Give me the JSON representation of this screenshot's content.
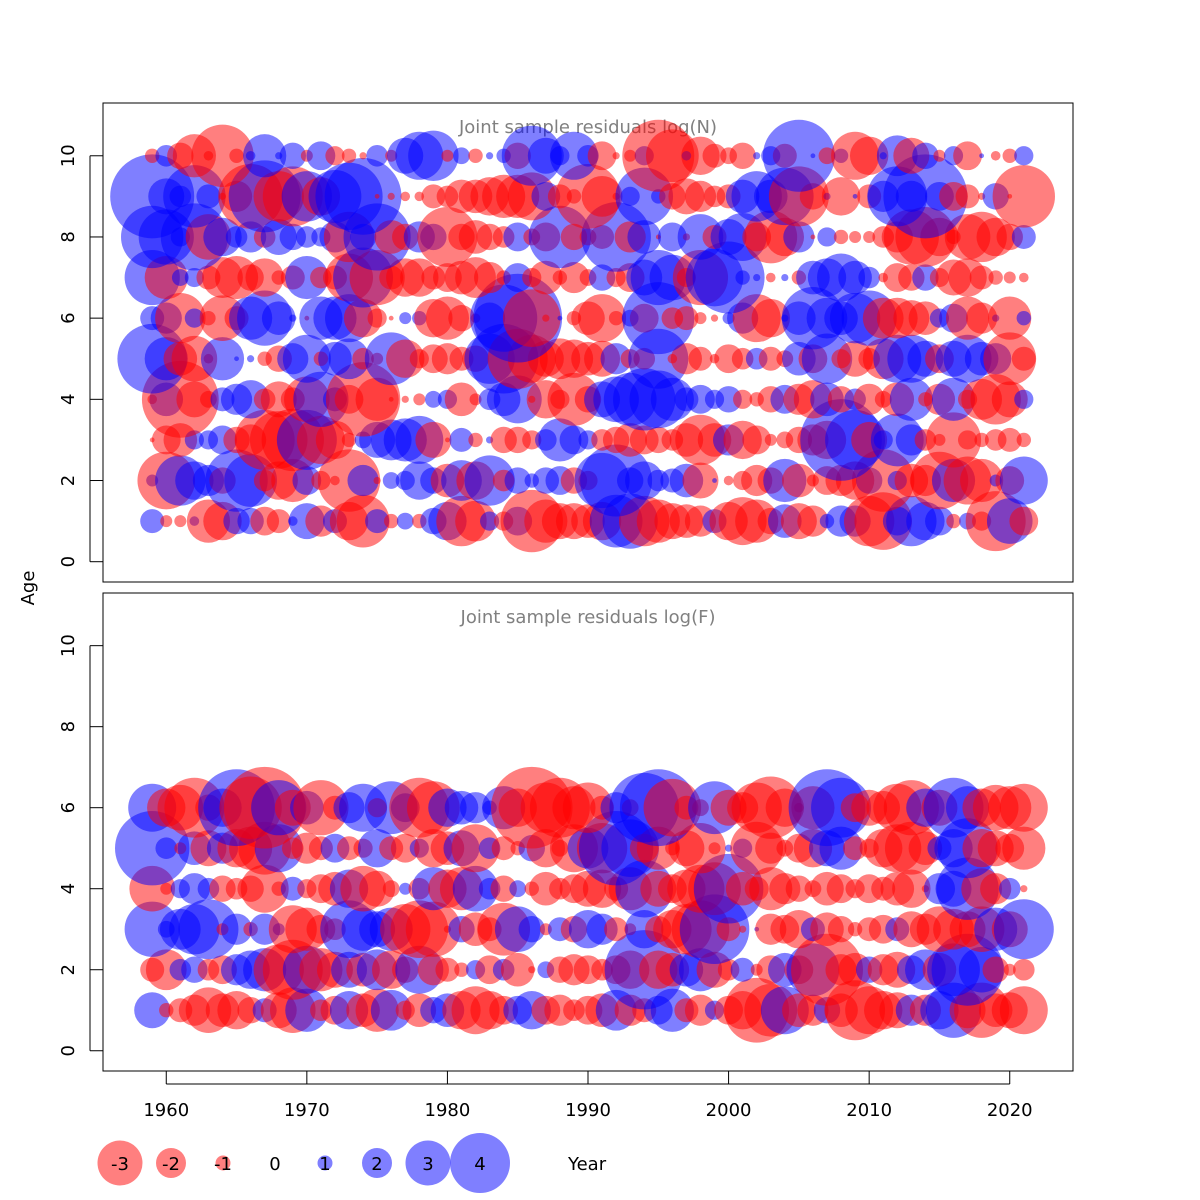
{
  "chart_data": {
    "type": "scatter",
    "subtype": "bubble",
    "xlabel": "Year",
    "ylabel": "Age",
    "xlim": [
      1955.5,
      2024.5
    ],
    "x_ticks": [
      "1960",
      "1970",
      "1980",
      "1990",
      "2000",
      "2010",
      "2020"
    ],
    "y_ticks": [
      "0",
      "2",
      "4",
      "6",
      "8",
      "10"
    ],
    "years": [
      1959,
      2021
    ],
    "colors": {
      "negative": "#FF0000",
      "positive": "#0000FF",
      "alpha": 0.5
    },
    "legend": {
      "placement": "bottom-left",
      "entries": [
        {
          "label": "-3",
          "value": -3
        },
        {
          "label": "-2",
          "value": -2
        },
        {
          "label": "-1",
          "value": -1
        },
        {
          "label": "0",
          "value": 0
        },
        {
          "label": "1",
          "value": 1
        },
        {
          "label": "2",
          "value": 2
        },
        {
          "label": "3",
          "value": 3
        },
        {
          "label": "4",
          "value": 4
        }
      ]
    },
    "panels": [
      {
        "title": "Joint sample residuals log(N)",
        "ylim": [
          -0.5,
          11.3
        ],
        "ages": [
          1,
          2,
          3,
          4,
          5,
          6,
          7,
          8,
          9,
          10
        ],
        "residuals": {
          "10": [
            -0.6,
            0.9,
            -1.1,
            -1.8,
            -0.4,
            -2.6,
            -0.6,
            0.4,
            1.8,
            0.3,
            1.1,
            -0.5,
            1.2,
            -0.8,
            -0.6,
            -0.3,
            0.9,
            -0.5,
            1.5,
            2.0,
            2.1,
            -0.5,
            0.7,
            -0.6,
            0.3,
            0.6,
            -1.1,
            2.5,
            1.5,
            0.8,
            2.0,
            0.9,
            -1.2,
            -0.3,
            -0.5,
            0.8,
            -3.0,
            -2.2,
            0.4,
            -1.6,
            -1.0,
            -0.7,
            -1.1,
            0.3,
            0.8,
            -1.0,
            3.0,
            0.2,
            -0.7,
            0.6,
            -2.0,
            -1.6,
            0.3,
            1.7,
            -1.5,
            1.1,
            -0.5,
            0.8,
            -1.2,
            0.2,
            -0.4,
            -0.6,
            0.8
          ],
          "9": [
            3.5,
            1.5,
            0.9,
            2.6,
            1.0,
            -0.3,
            -1.3,
            -2.7,
            3.0,
            -2.1,
            -2.5,
            2.1,
            -1.6,
            2.2,
            2.8,
            3.2,
            -0.2,
            -0.3,
            -0.4,
            -0.4,
            -1.0,
            -0.9,
            -1.4,
            -1.4,
            -1.6,
            -1.8,
            -1.8,
            -2.0,
            1.2,
            -1.0,
            -0.6,
            -2.7,
            -1.7,
            -0.3,
            0.8,
            2.4,
            0.6,
            -1.1,
            -1.5,
            -1.3,
            -0.9,
            -1.0,
            1.4,
            2.1,
            1.4,
            2.4,
            -2.5,
            -1.1,
            0.3,
            -1.6,
            0.2,
            -1.0,
            1.3,
            2.5,
            1.3,
            3.5,
            1.2,
            -1.2,
            -1.0,
            -0.3,
            1.1,
            -0.2,
            -2.6
          ],
          "8": [
            2.6,
            2.3,
            0.8,
            2.8,
            -1.9,
            1.6,
            0.9,
            1.3,
            -0.9,
            1.5,
            1.1,
            0.9,
            0.8,
            1.3,
            -2.1,
            1.1,
            2.8,
            -1.4,
            -1.1,
            1.3,
            1.1,
            -2.5,
            -1.1,
            -1.4,
            -1.1,
            -0.9,
            1.2,
            -0.7,
            -1.2,
            2.6,
            -1.1,
            -0.7,
            -1.0,
            2.9,
            -1.3,
            1.4,
            -0.2,
            1.2,
            -0.3,
            1.9,
            -1.0,
            1.5,
            2.0,
            -1.2,
            -2.2,
            -1.6,
            1.3,
            -0.2,
            0.8,
            -0.6,
            -0.5,
            -0.5,
            -0.9,
            -1.3,
            -2.3,
            -2.5,
            -1.6,
            -0.6,
            -1.9,
            -2.1,
            -1.6,
            -1.1,
            1.0
          ],
          "7": [
            2.3,
            -1.8,
            0.7,
            0.8,
            -1.0,
            -1.7,
            -1.8,
            -1.1,
            -1.6,
            -0.6,
            -1.0,
            1.8,
            -0.9,
            -1.0,
            -2.0,
            2.5,
            -2.3,
            -1.0,
            -1.6,
            -1.6,
            -1.0,
            -1.2,
            -1.4,
            -1.7,
            -1.3,
            -0.6,
            1.2,
            -0.8,
            -1.4,
            -0.6,
            -1.3,
            -0.7,
            1.1,
            -0.8,
            -1.2,
            1.5,
            2.3,
            1.9,
            -0.8,
            -2.3,
            2.4,
            3.0,
            0.6,
            0.3,
            -0.4,
            0.3,
            -0.6,
            1.4,
            1.6,
            2.0,
            1.4,
            0.9,
            -0.4,
            -1.2,
            -1.1,
            1.1,
            -0.8,
            -1.5,
            -1.6,
            -1.0,
            -0.6,
            -0.5,
            -0.4
          ],
          "6": [
            1.0,
            1.3,
            -2.1,
            0.8,
            -0.6,
            -1.9,
            -1.0,
            1.8,
            2.3,
            1.4,
            0.3,
            -0.2,
            1.8,
            1.8,
            2.0,
            -1.6,
            -0.8,
            -0.2,
            0.5,
            0.6,
            -1.6,
            -1.8,
            -1.1,
            -0.4,
            1.3,
            2.8,
            3.7,
            -2.4,
            -0.3,
            0.2,
            -0.6,
            -1.4,
            -2.0,
            -0.6,
            0.7,
            -1.2,
            3.0,
            -0.9,
            -1.0,
            -0.5,
            -0.3,
            0.5,
            1.3,
            -2.0,
            -1.6,
            0.3,
            1.4,
            2.6,
            1.7,
            1.4,
            2.1,
            2.3,
            -1.7,
            -1.7,
            -1.5,
            -1.4,
            0.8,
            1.2,
            -1.8,
            -1.3,
            0.3,
            -1.8,
            0.6
          ],
          "5": [
            2.9,
            1.8,
            -1.4,
            -1.9,
            -0.4,
            1.8,
            0.2,
            0.3,
            -0.6,
            -1.1,
            1.3,
            2.0,
            -0.6,
            1.4,
            1.7,
            -0.9,
            -0.5,
            2.2,
            -1.6,
            -0.8,
            -1.2,
            -1.3,
            -1.0,
            -1.1,
            2.1,
            2.9,
            -2.5,
            -2.0,
            -1.5,
            -1.7,
            -1.6,
            -1.4,
            -1.5,
            1.3,
            -0.8,
            -0.9,
            2.5,
            -0.4,
            -1.3,
            -1.0,
            -0.4,
            -1.2,
            -0.9,
            0.9,
            -1.0,
            -0.7,
            1.4,
            -1.2,
            2.1,
            -0.8,
            -1.5,
            -0.9,
            -1.7,
            2.0,
            2.0,
            1.5,
            -1.2,
            1.5,
            2.0,
            1.4,
            1.3,
            -2.2,
            -1.0
          ],
          "4": [
            -0.4,
            1.4,
            -3.2,
            -1.5,
            -0.7,
            1.0,
            1.3,
            1.6,
            -0.9,
            -1.5,
            -1.0,
            -1.9,
            2.3,
            1.0,
            -1.2,
            -3.1,
            -1.8,
            -0.2,
            -0.3,
            -0.5,
            0.7,
            0.8,
            -1.4,
            -0.5,
            0.9,
            1.4,
            2.0,
            -0.3,
            -1.6,
            -0.8,
            -2.2,
            -1.1,
            1.5,
            1.9,
            2.2,
            2.6,
            2.4,
            1.8,
            1.0,
            1.2,
            0.8,
            1.1,
            -0.8,
            -0.6,
            -1.1,
            1.2,
            -1.3,
            -1.6,
            1.4,
            -1.1,
            0.9,
            -1.3,
            -0.7,
            -1.4,
            1.8,
            -0.6,
            -1.3,
            1.8,
            -0.8,
            -1.7,
            -2.1,
            -1.5,
            0.8
          ],
          "3": [
            -0.2,
            -1.2,
            -1.4,
            0.8,
            0.8,
            1.2,
            -1.1,
            -1.3,
            -2.5,
            -2.4,
            -2.6,
            2.5,
            -2.0,
            -1.6,
            -0.6,
            0.7,
            1.5,
            1.7,
            1.8,
            2.0,
            -1.5,
            -0.2,
            1.0,
            -0.6,
            0.3,
            -1.1,
            -1.1,
            -0.8,
            0.9,
            1.8,
            1.2,
            0.8,
            -0.9,
            -1.1,
            -1.4,
            -1.2,
            -1.1,
            -0.9,
            -1.4,
            -2.1,
            -1.4,
            1.3,
            -1.6,
            -1.2,
            -0.5,
            -0.7,
            -1.1,
            -1.3,
            -1.6,
            3.4,
            2.5,
            -1.5,
            0.8,
            2.2,
            1.3,
            -0.9,
            -0.5,
            -2.3,
            -0.8,
            -0.6,
            -0.9,
            -1.0,
            -0.6
          ],
          "2": [
            0.5,
            -2.4,
            2.1,
            1.6,
            1.3,
            -1.1,
            2.6,
            2.2,
            -0.9,
            -1.6,
            -1.8,
            1.2,
            -0.8,
            -0.4,
            -2.6,
            1.3,
            -0.3,
            0.7,
            0.8,
            1.6,
            1.1,
            -1.4,
            1.7,
            -1.6,
            2.1,
            -0.9,
            1.1,
            0.6,
            1.1,
            1.2,
            -1.1,
            -0.8,
            2.3,
            3.0,
            1.1,
            1.6,
            0.9,
            1.0,
            1.4,
            -1.5,
            0.2,
            -0.4,
            -0.8,
            -1.3,
            -1.1,
            1.8,
            -1.4,
            -0.5,
            -1.2,
            -1.3,
            -1.6,
            1.1,
            -2.6,
            0.8,
            -1.4,
            -1.3,
            -2.4,
            1.8,
            -2.0,
            -1.8,
            0.5,
            -1.2,
            2.0
          ],
          "1": [
            1.0,
            -0.5,
            -0.5,
            0.4,
            -1.8,
            -1.6,
            1.1,
            1.1,
            -1.2,
            -1.0,
            0.4,
            1.5,
            -1.3,
            1.0,
            -1.6,
            -2.2,
            1.0,
            -0.6,
            0.7,
            -0.6,
            1.1,
            1.6,
            -2.1,
            -1.7,
            0.8,
            -0.8,
            1.2,
            -2.6,
            -1.8,
            -1.5,
            -1.5,
            -1.4,
            -1.6,
            2.2,
            2.3,
            -2.1,
            -1.8,
            -1.5,
            -1.4,
            -1.3,
            1.0,
            -1.6,
            -2.0,
            -1.8,
            -1.1,
            1.4,
            -1.5,
            -1.3,
            0.6,
            1.3,
            1.3,
            -2.1,
            -2.4,
            1.2,
            2.1,
            1.6,
            1.2,
            -0.6,
            0.7,
            -0.8,
            -2.5,
            1.9,
            -1.2
          ]
        }
      },
      {
        "title": "Joint sample residuals log(F)",
        "ylim": [
          -0.5,
          11.3
        ],
        "ages": [
          1,
          2,
          3,
          4,
          5,
          6
        ],
        "residuals": {
          "6": [
            2.0,
            -1.6,
            -1.9,
            -2.5,
            -1.1,
            1.6,
            3.2,
            -2.6,
            -3.4,
            2.3,
            -1.5,
            1.4,
            -2.3,
            -1.0,
            1.3,
            2.0,
            -0.8,
            2.2,
            1.2,
            -2.5,
            -2.2,
            1.6,
            1.4,
            1.3,
            0.6,
            1.8,
            -1.6,
            -3.4,
            -2.1,
            -2.5,
            -1.8,
            -2.1,
            -1.0,
            1.3,
            -0.7,
            2.9,
            3.2,
            -2.4,
            -1.0,
            -0.7,
            2.2,
            -1.5,
            -1.3,
            -2.1,
            -2.6,
            -1.6,
            -0.4,
            -1.8,
            3.2,
            2.5,
            -1.2,
            -1.5,
            -1.4,
            -2.0,
            -2.3,
            1.6,
            -1.5,
            2.5,
            1.8,
            -1.6,
            -1.9,
            -1.8,
            -2.0
          ],
          "5": [
            3.1,
            0.9,
            -0.5,
            1.4,
            -1.5,
            1.3,
            -1.6,
            -1.8,
            -2.2,
            2.0,
            -0.9,
            -1.3,
            -1.0,
            1.2,
            -1.0,
            -0.8,
            1.6,
            -1.0,
            -1.2,
            0.8,
            -1.6,
            -1.4,
            1.5,
            -2.0,
            0.9,
            -1.0,
            -0.6,
            1.1,
            -1.6,
            -0.7,
            -2.0,
            1.7,
            -2.1,
            3.1,
            2.4,
            -1.2,
            -1.8,
            -0.6,
            -1.5,
            -2.1,
            -0.5,
            0.3,
            0.8,
            -2.2,
            -1.3,
            -0.7,
            -1.2,
            -1.6,
            1.5,
            1.8,
            -1.0,
            -0.8,
            -1.6,
            -2.0,
            -2.2,
            -1.4,
            1.0,
            1.6,
            2.5,
            -1.6,
            -1.5,
            -1.2,
            -1.8
          ],
          "4": [
            -1.9,
            -0.5,
            0.8,
            1.3,
            0.9,
            -1.1,
            -0.9,
            -1.1,
            -2.0,
            -0.6,
            1.0,
            -0.8,
            -1.2,
            -1.4,
            1.6,
            -1.9,
            -1.5,
            -0.7,
            0.5,
            -0.9,
            1.8,
            -1.6,
            -1.8,
            1.9,
            0.9,
            -1.1,
            0.7,
            -0.6,
            -1.4,
            -0.9,
            -1.2,
            -1.5,
            -1.6,
            -1.0,
            -1.8,
            2.4,
            -1.5,
            -1.2,
            -1.6,
            -2.0,
            -2.2,
            2.9,
            -1.4,
            -1.0,
            -1.8,
            -1.3,
            -1.1,
            -0.7,
            -1.4,
            -1.2,
            -0.8,
            -1.2,
            -1.0,
            -1.4,
            -1.6,
            -0.3,
            1.3,
            1.5,
            2.6,
            -1.7,
            -1.3,
            0.9,
            -0.3
          ],
          "3": [
            2.3,
            0.7,
            1.7,
            2.1,
            2.5,
            -0.5,
            1.3,
            -0.6,
            1.3,
            0.5,
            -2.0,
            -1.8,
            -1.2,
            -0.9,
            2.4,
            1.8,
            1.5,
            1.8,
            -2.1,
            -2.4,
            -2.3,
            -0.3,
            1.1,
            -1.4,
            -1.0,
            -2.2,
            1.9,
            1.1,
            -0.5,
            1.0,
            -1.1,
            1.6,
            1.3,
            -1.0,
            -0.5,
            1.6,
            -1.1,
            -1.6,
            -2.1,
            -2.4,
            2.9,
            -1.0,
            -0.3,
            0.2,
            -1.3,
            -1.2,
            -1.6,
            1.0,
            -1.4,
            -1.1,
            -0.6,
            -1.0,
            -1.2,
            1.0,
            -1.5,
            -1.3,
            -1.9,
            -1.7,
            -1.5,
            -1.9,
            1.8,
            -1.5,
            2.5
          ],
          "2": [
            -1.0,
            -1.7,
            0.9,
            1.1,
            -0.9,
            -1.2,
            1.3,
            1.6,
            1.8,
            -2.1,
            -2.5,
            2.0,
            -1.8,
            -1.5,
            1.5,
            -1.4,
            1.7,
            -1.6,
            -1.1,
            2.0,
            -1.3,
            -1.0,
            -0.6,
            0.8,
            -1.2,
            0.9,
            -1.4,
            -0.3,
            0.7,
            -1.1,
            -1.3,
            -1.2,
            -0.9,
            -1.2,
            -1.6,
            3.3,
            -1.6,
            -1.4,
            1.4,
            1.8,
            -1.5,
            -0.9,
            1.0,
            -0.5,
            -1.2,
            1.4,
            -1.2,
            2.2,
            -3.0,
            -1.3,
            -1.4,
            1.1,
            -1.3,
            -1.5,
            1.2,
            1.7,
            -1.4,
            2.2,
            3.0,
            1.9,
            -1.1,
            -0.5,
            -0.9
          ],
          "1": [
            1.5,
            -0.6,
            -1.0,
            -1.3,
            -1.9,
            -1.4,
            -1.6,
            -1.1,
            1.0,
            -1.5,
            -1.9,
            1.8,
            -0.9,
            -1.2,
            1.6,
            -1.4,
            -1.8,
            1.7,
            -0.8,
            -1.4,
            1.1,
            1.4,
            -1.6,
            -2.0,
            -1.6,
            -1.2,
            1.2,
            1.6,
            -1.2,
            -1.3,
            -0.9,
            -1.2,
            -1.4,
            1.7,
            -1.3,
            -1.0,
            1.2,
            1.8,
            -1.0,
            -1.3,
            0.8,
            -1.2,
            -1.6,
            -2.7,
            -2.2,
            2.0,
            -1.4,
            -1.3,
            1.1,
            -1.4,
            -2.5,
            -2.0,
            -1.6,
            -1.5,
            1.3,
            -1.3,
            1.6,
            2.3,
            -1.5,
            -2.3,
            -1.4,
            -1.5,
            -2.0
          ]
        }
      }
    ]
  }
}
